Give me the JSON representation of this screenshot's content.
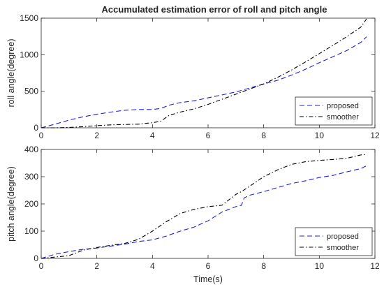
{
  "title": "Accumulated estimation error of roll and pitch angle",
  "colors": {
    "proposed": "#1f1fd6",
    "smoother": "#000000",
    "axis": "#262626"
  },
  "chart_data": [
    {
      "type": "line",
      "title": "Accumulated estimation error of roll and pitch angle",
      "xlabel": "",
      "ylabel": "roll angle(degree)",
      "xlim": [
        0,
        12
      ],
      "ylim": [
        0,
        1500
      ],
      "xticks": [
        0,
        2,
        4,
        6,
        8,
        10,
        12
      ],
      "yticks": [
        0,
        500,
        1000,
        1500
      ],
      "grid": false,
      "legend": "bottom-right",
      "series": [
        {
          "name": "proposed",
          "style": "dashed",
          "color": "#1f1fd6",
          "x": [
            0,
            0.5,
            1,
            1.5,
            2,
            2.5,
            3,
            3.5,
            4,
            4.3,
            4.6,
            5,
            5.5,
            6,
            6.5,
            7,
            7.5,
            8,
            8.5,
            9,
            9.5,
            10,
            10.5,
            11,
            11.5,
            11.7
          ],
          "y": [
            0,
            50,
            105,
            150,
            185,
            215,
            240,
            250,
            250,
            265,
            310,
            345,
            370,
            410,
            450,
            490,
            545,
            600,
            650,
            720,
            800,
            890,
            975,
            1060,
            1170,
            1245
          ]
        },
        {
          "name": "smoother",
          "style": "dashdot",
          "color": "#000000",
          "x": [
            0,
            0.5,
            1,
            1.5,
            2,
            2.5,
            3,
            3.5,
            4,
            4.3,
            4.6,
            5,
            5.5,
            6,
            6.5,
            7,
            7.5,
            8,
            8.5,
            9,
            9.5,
            10,
            10.5,
            11,
            11.5,
            11.7
          ],
          "y": [
            0,
            0,
            5,
            15,
            30,
            40,
            45,
            50,
            70,
            90,
            170,
            215,
            260,
            320,
            390,
            460,
            530,
            600,
            690,
            790,
            900,
            1015,
            1130,
            1250,
            1380,
            1490
          ]
        }
      ]
    },
    {
      "type": "line",
      "title": "",
      "xlabel": "Time(s)",
      "ylabel": "pitch angle(degree)",
      "xlim": [
        0,
        12
      ],
      "ylim": [
        0,
        400
      ],
      "xticks": [
        0,
        2,
        4,
        6,
        8,
        10,
        12
      ],
      "yticks": [
        0,
        100,
        200,
        300,
        400
      ],
      "grid": false,
      "legend": "bottom-right",
      "series": [
        {
          "name": "proposed",
          "style": "dashed",
          "color": "#1f1fd6",
          "x": [
            0,
            0.5,
            1,
            1.5,
            2,
            2.5,
            3,
            3.5,
            4,
            4.5,
            5,
            5.5,
            6,
            6.5,
            7,
            7.2,
            7.3,
            7.5,
            8,
            8.5,
            9,
            9.5,
            10,
            10.5,
            11,
            11.5,
            11.7
          ],
          "y": [
            0,
            15,
            25,
            33,
            38,
            45,
            52,
            62,
            68,
            82,
            100,
            115,
            138,
            170,
            190,
            195,
            222,
            232,
            245,
            260,
            275,
            285,
            297,
            305,
            318,
            330,
            340
          ]
        },
        {
          "name": "smoother",
          "style": "dashdot",
          "color": "#000000",
          "x": [
            0,
            0.5,
            1,
            1.5,
            2,
            2.5,
            3,
            3.5,
            4,
            4.5,
            5,
            5.5,
            6,
            6.5,
            7,
            7.2,
            7.5,
            8,
            8.5,
            9,
            9.5,
            10,
            10.5,
            11,
            11.5,
            11.7
          ],
          "y": [
            0,
            5,
            10,
            30,
            40,
            48,
            55,
            70,
            100,
            135,
            165,
            180,
            190,
            195,
            235,
            245,
            265,
            300,
            325,
            345,
            355,
            360,
            363,
            368,
            380,
            382
          ]
        }
      ]
    }
  ]
}
